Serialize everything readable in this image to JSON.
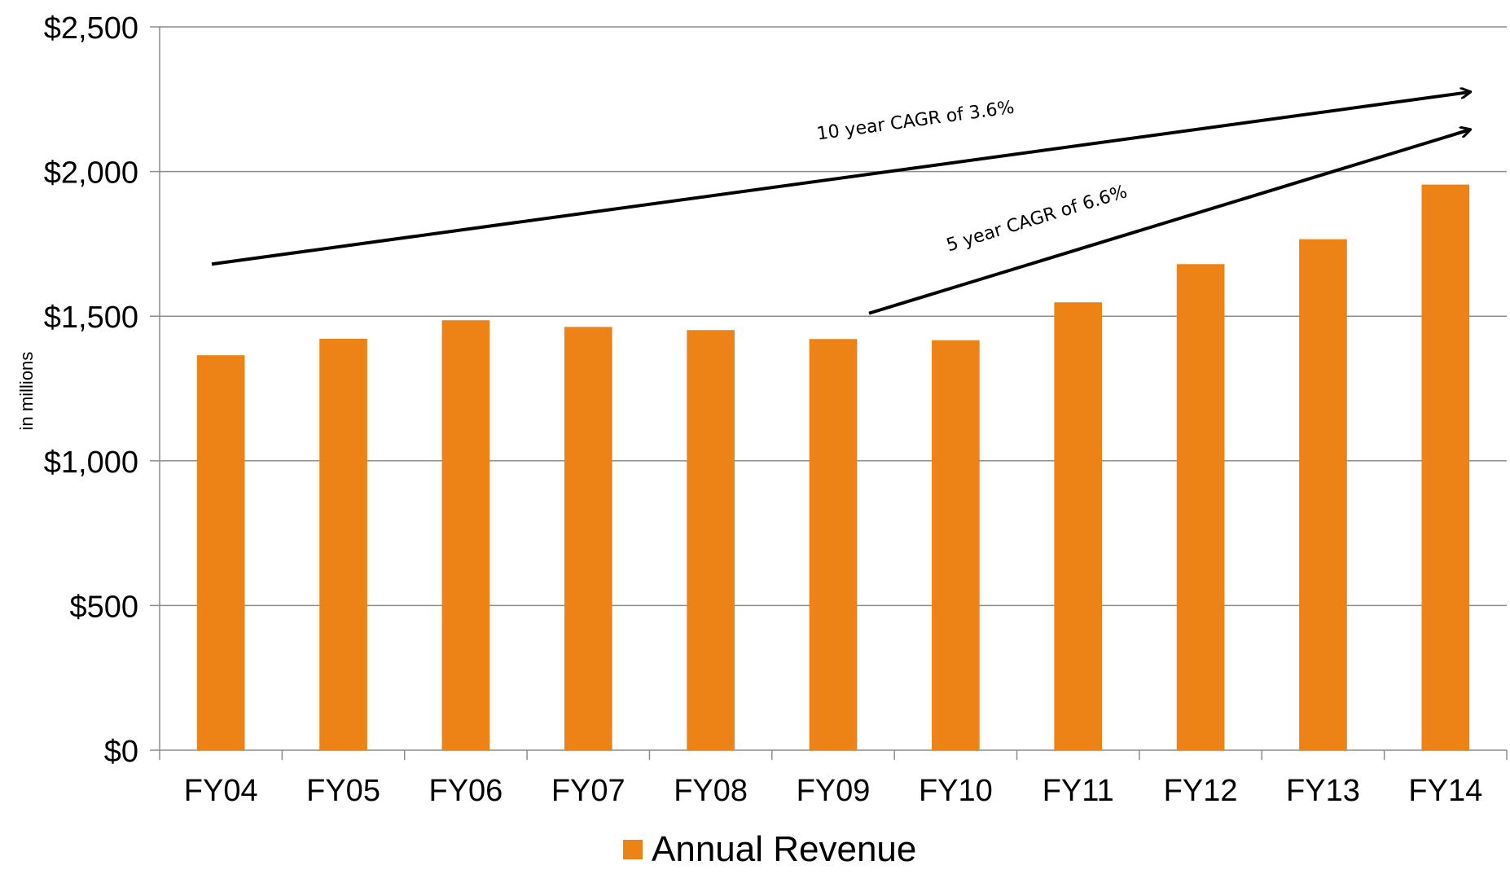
{
  "chart_data": {
    "type": "bar",
    "categories": [
      "FY04",
      "FY05",
      "FY06",
      "FY07",
      "FY08",
      "FY09",
      "FY10",
      "FY11",
      "FY12",
      "FY13",
      "FY14"
    ],
    "series": [
      {
        "name": "Annual Revenue",
        "values": [
          1365,
          1422,
          1486,
          1463,
          1452,
          1421,
          1417,
          1548,
          1680,
          1766,
          1955
        ],
        "color": "#ED8216"
      }
    ],
    "ylabel": "in millions",
    "xlabel": "",
    "ylim": [
      0,
      2500
    ],
    "yticks": [
      0,
      500,
      1000,
      1500,
      2000,
      2500
    ],
    "ytick_labels": [
      "$0",
      "$500",
      "$1,000",
      "$1,500",
      "$2,000",
      "$2,500"
    ],
    "grid": true,
    "legend": "bottom",
    "annotations": [
      {
        "text": "10 year CAGR of 3.6%",
        "from": {
          "x": "FY04",
          "y": 1680
        },
        "to": {
          "x": "FY14",
          "y": 2275
        }
      },
      {
        "text": "5 year CAGR of 6.6%",
        "from": {
          "x": "FY09",
          "y": 1510
        },
        "to": {
          "x": "FY14",
          "y": 2145
        }
      }
    ]
  }
}
